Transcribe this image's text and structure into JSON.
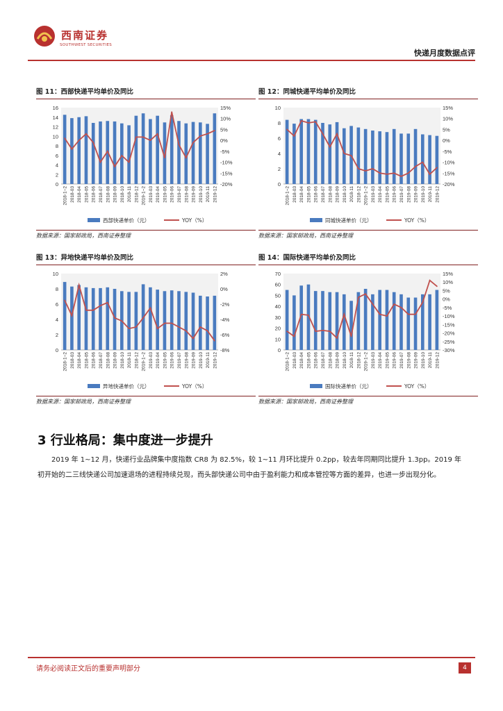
{
  "header": {
    "logo_cn": "西南证券",
    "logo_en": "SOUTHWEST SECURITIES",
    "report_title": "快递月度数据点评"
  },
  "colors": {
    "brand": "#b8312f",
    "bar": "#4a7bbf",
    "line": "#c0504d"
  },
  "figures": [
    {
      "title": "图 11：西部快递平均单价及同比",
      "source": "数据来源：国家邮政局，西南证券整理",
      "chart_data": {
        "type": "bar",
        "categories": [
          "2018-1~2",
          "2018-03",
          "2018-04",
          "2018-05",
          "2018-06",
          "2018-07",
          "2018-08",
          "2018-09",
          "2018-10",
          "2018-11",
          "2018-12",
          "2019-1~2",
          "2019-03",
          "2019-04",
          "2019-05",
          "2019-06",
          "2019-07",
          "2019-08",
          "2019-09",
          "2019-10",
          "2019-11",
          "2019-12"
        ],
        "x_labels": [
          "2018-1~2",
          "2018-03",
          "2018-04",
          "2018-05",
          "2018-06",
          "2018-07",
          "2018-08",
          "2018-09",
          "2018-10",
          "2018-11",
          "2018-12",
          "2019-1~2",
          "2019-03",
          "2019-04",
          "2019-05",
          "2019-06",
          "2019-07",
          "2019-08",
          "2019-09",
          "2019-10",
          "2019-11",
          "2019-12"
        ],
        "series": [
          {
            "name": "西部快递单价（元）",
            "kind": "bar",
            "axis": "left",
            "values": [
              14.5,
              13.8,
              14.0,
              14.2,
              12.8,
              13.1,
              13.2,
              13.1,
              12.7,
              12.3,
              14.3,
              14.8,
              13.6,
              14.3,
              12.9,
              14.4,
              13.2,
              12.7,
              13.0,
              12.9,
              12.6,
              14.8
            ]
          },
          {
            "name": "YOY（%）",
            "kind": "line",
            "axis": "right",
            "values": [
              1,
              -4,
              0,
              3,
              -1,
              -10,
              -5,
              -12,
              -7,
              -10,
              1.5,
              1.5,
              0,
              3,
              -8,
              13,
              -2,
              -8,
              -1,
              2,
              3,
              4.5
            ]
          }
        ],
        "left_axis": {
          "min": 0,
          "max": 16,
          "ticks": [
            0,
            2,
            4,
            6,
            8,
            10,
            12,
            14,
            16
          ],
          "labels": [
            "0",
            "2",
            "4",
            "6",
            "8",
            "10",
            "12",
            "14",
            "16"
          ]
        },
        "right_axis": {
          "min": -20,
          "max": 15,
          "ticks": [
            -20,
            -15,
            -10,
            -5,
            0,
            5,
            10,
            15
          ],
          "labels": [
            "-20%",
            "-15%",
            "-10%",
            "-5%",
            "0%",
            "5%",
            "10%",
            "15%"
          ]
        },
        "legend": [
          "西部快递单价（元）",
          "YOY（%）"
        ]
      }
    },
    {
      "title": "图 12：同城快递平均单价及同比",
      "source": "数据来源：国家邮政局，西南证券整理",
      "chart_data": {
        "type": "bar",
        "categories": [
          "2018-1~2",
          "2018-03",
          "2018-04",
          "2018-05",
          "2018-06",
          "2018-07",
          "2018-08",
          "2018-09",
          "2018-10",
          "2018-11",
          "2018-12",
          "2019-1~2",
          "2019-03",
          "2019-04",
          "2019-05",
          "2019-06",
          "2019-07",
          "2019-08",
          "2019-09",
          "2019-10",
          "2019-11",
          "2019-12"
        ],
        "x_labels": [
          "2018-1~2",
          "2018-03",
          "2018-04",
          "2018-05",
          "2018-06",
          "2018-07",
          "2018-08",
          "2018-09",
          "2018-10",
          "2018-11",
          "2018-12",
          "2019-1~2",
          "2019-03",
          "2019-04",
          "2019-05",
          "2019-06",
          "2019-07",
          "2019-08",
          "2019-09",
          "2019-10",
          "2019-11",
          "2019-12"
        ],
        "series": [
          {
            "name": "同城快递单价（元）",
            "kind": "bar",
            "axis": "left",
            "values": [
              8.4,
              7.9,
              8.5,
              8.5,
              8.4,
              8.0,
              7.8,
              8.1,
              7.3,
              7.6,
              7.4,
              7.2,
              7.0,
              6.9,
              6.8,
              7.2,
              6.6,
              6.6,
              7.2,
              6.5,
              6.4,
              6.3
            ]
          },
          {
            "name": "YOY（%）",
            "kind": "line",
            "axis": "right",
            "values": [
              5,
              2,
              9,
              8,
              8.5,
              3,
              -3,
              3,
              -6,
              -7,
              -13,
              -14,
              -13,
              -15,
              -15.5,
              -15,
              -16.5,
              -15,
              -12,
              -10,
              -15.5,
              -12.5
            ]
          }
        ],
        "left_axis": {
          "min": 0,
          "max": 10,
          "ticks": [
            0,
            2,
            4,
            6,
            8,
            10
          ],
          "labels": [
            "0",
            "2",
            "4",
            "6",
            "8",
            "10"
          ]
        },
        "right_axis": {
          "min": -20,
          "max": 15,
          "ticks": [
            -20,
            -15,
            -10,
            -5,
            0,
            5,
            10,
            15
          ],
          "labels": [
            "-20%",
            "-15%",
            "-10%",
            "-5%",
            "0%",
            "5%",
            "10%",
            "15%"
          ]
        },
        "legend": [
          "同城快递单价（元）",
          "YOY（%）"
        ]
      }
    },
    {
      "title": "图 13：异地快递平均单价及同比",
      "source": "数据来源：国家邮政局，西南证券整理",
      "chart_data": {
        "type": "bar",
        "categories": [
          "2018-1~2",
          "2018-03",
          "2018-04",
          "2018-05",
          "2018-06",
          "2018-07",
          "2018-08",
          "2018-09",
          "2018-10",
          "2018-11",
          "2018-12",
          "2019-1~2",
          "2019-03",
          "2019-04",
          "2019-05",
          "2019-06",
          "2019-07",
          "2019-08",
          "2019-09",
          "2019-10",
          "2019-11",
          "2019-12"
        ],
        "x_labels": [
          "2018-1~2",
          "2018-03",
          "2018-04",
          "2018-05",
          "2018-06",
          "2018-07",
          "2018-08",
          "2018-09",
          "2018-10",
          "2018-11",
          "2018-12",
          "2019-1~2",
          "2019-03",
          "2019-04",
          "2019-05",
          "2019-06",
          "2019-07",
          "2019-08",
          "2019-09",
          "2019-10",
          "2019-11",
          "2019-12"
        ],
        "series": [
          {
            "name": "异地快递单价（元）",
            "kind": "bar",
            "axis": "left",
            "values": [
              8.9,
              8.3,
              8.5,
              8.2,
              8.1,
              8.1,
              8.2,
              8.0,
              7.7,
              7.6,
              7.6,
              8.6,
              8.2,
              7.9,
              7.7,
              7.8,
              7.7,
              7.6,
              7.5,
              7.1,
              7.0,
              7.1
            ]
          },
          {
            "name": "YOY（%）",
            "kind": "line",
            "axis": "right",
            "values": [
              -1.5,
              -3.5,
              0.5,
              -2.8,
              -2.8,
              -2.2,
              -1.8,
              -3.8,
              -4.2,
              -5.2,
              -5.0,
              -3.8,
              -2.5,
              -5.2,
              -4.5,
              -4.5,
              -5.0,
              -5.5,
              -6.5,
              -5.0,
              -5.5,
              -6.8
            ]
          }
        ],
        "left_axis": {
          "min": 0,
          "max": 10,
          "ticks": [
            0,
            2,
            4,
            6,
            8,
            10
          ],
          "labels": [
            "0",
            "2",
            "4",
            "6",
            "8",
            "10"
          ]
        },
        "right_axis": {
          "min": -8,
          "max": 2,
          "ticks": [
            -8,
            -6,
            -4,
            -2,
            0,
            2
          ],
          "labels": [
            "-8%",
            "-6%",
            "-4%",
            "-2%",
            "0%",
            "2%"
          ]
        },
        "legend": [
          "异地快递单价（元）",
          "YOY（%）"
        ]
      }
    },
    {
      "title": "图 14：国际快递平均单价及同比",
      "source": "数据来源：国家邮政局，西南证券整理",
      "chart_data": {
        "type": "bar",
        "categories": [
          "2018-1~2",
          "2018-03",
          "2018-04",
          "2018-05",
          "2018-06",
          "2018-07",
          "2018-08",
          "2018-09",
          "2018-10",
          "2018-11",
          "2018-12",
          "2019-1~2",
          "2019-03",
          "2019-04",
          "2019-05",
          "2019-06",
          "2019-07",
          "2019-08",
          "2019-09",
          "2019-10",
          "2019-11",
          "2019-12"
        ],
        "x_labels": [
          "2018-1~2",
          "2018-03",
          "2018-04",
          "2018-05",
          "2018-06",
          "2018-07",
          "2018-08",
          "2018-09",
          "2018-10",
          "2018-11",
          "2018-12",
          "2019-1~2",
          "2019-03",
          "2019-04",
          "2019-05",
          "2019-06",
          "2019-07",
          "2019-08",
          "2019-09",
          "2019-10",
          "2019-11",
          "2019-12"
        ],
        "series": [
          {
            "name": "国际快递单价（元）",
            "kind": "bar",
            "axis": "left",
            "values": [
              55,
              50,
              59,
              60,
              54,
              54,
              53,
              53,
              51,
              45,
              53,
              56,
              51,
              55,
              55,
              53,
              51,
              48,
              48,
              51,
              51,
              55
            ]
          },
          {
            "name": "YOY（%）",
            "kind": "line",
            "axis": "right",
            "values": [
              -19,
              -22,
              -9,
              -9.5,
              -19,
              -18.5,
              -19,
              -23,
              -9,
              -22,
              1,
              3,
              -3,
              -9,
              -10,
              -3,
              -5,
              -9,
              -9,
              -2,
              11,
              7.5
            ]
          }
        ],
        "left_axis": {
          "min": 0,
          "max": 70,
          "ticks": [
            0,
            10,
            20,
            30,
            40,
            50,
            60,
            70
          ],
          "labels": [
            "0",
            "10",
            "20",
            "30",
            "40",
            "50",
            "60",
            "70"
          ]
        },
        "right_axis": {
          "min": -30,
          "max": 15,
          "ticks": [
            -30,
            -25,
            -20,
            -15,
            -10,
            -5,
            0,
            5,
            10,
            15
          ],
          "labels": [
            "-30%",
            "-25%",
            "-20%",
            "-15%",
            "-10%",
            "-5%",
            "0%",
            "5%",
            "10%",
            "15%"
          ]
        },
        "legend": [
          "国际快递单价（元）",
          "YOY（%）"
        ]
      }
    }
  ],
  "section": {
    "title": "3 行业格局：集中度进一步提升",
    "paragraph": "2019 年 1~12 月，快递行业品牌集中度指数 CR8 为 82.5%，较 1~11 月环比提升 0.2pp，较去年同期同比提升 1.3pp。2019 年初开始的二三线快递公司加速退场的进程持续兑现，而头部快递公司中由于盈利能力和成本管控等方面的差异，也进一步出现分化。"
  },
  "footer": {
    "disclaimer": "请务必阅读正文后的重要声明部分",
    "page_number": "4"
  }
}
